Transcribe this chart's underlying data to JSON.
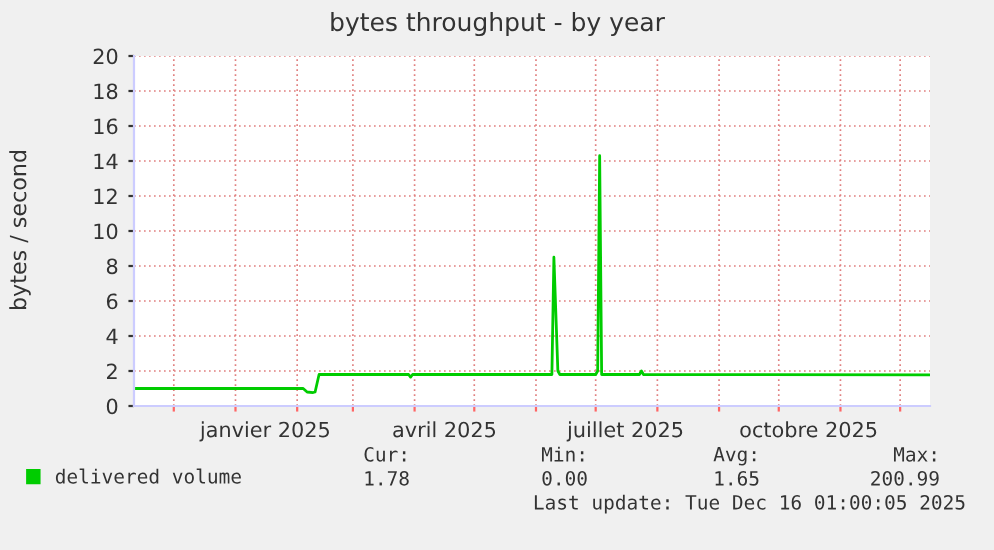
{
  "chart_data": {
    "type": "line",
    "title": "bytes throughput - by year",
    "ylabel": "bytes / second",
    "x": [
      "2024-11-11",
      "2025-02-04",
      "2025-02-06",
      "2025-02-09",
      "2025-02-10",
      "2025-02-12",
      "2025-03-29",
      "2025-03-30",
      "2025-03-31",
      "2025-06-09",
      "2025-06-10",
      "2025-06-12",
      "2025-06-13",
      "2025-07-01",
      "2025-07-02",
      "2025-07-03",
      "2025-07-04",
      "2025-07-23",
      "2025-07-24",
      "2025-07-25",
      "2025-12-16"
    ],
    "series": [
      {
        "name": "delivered volume",
        "color": "#00cc00",
        "values": [
          1.0,
          1.0,
          0.8,
          0.77,
          0.8,
          1.8,
          1.8,
          1.65,
          1.8,
          1.8,
          8.5,
          2.0,
          1.8,
          1.8,
          2.0,
          14.3,
          1.8,
          1.8,
          2.0,
          1.8,
          1.78
        ]
      }
    ],
    "xlim": [
      "2024-11-11",
      "2025-12-16"
    ],
    "xticks": [
      {
        "value": "2024-12-01",
        "label": null
      },
      {
        "value": "2025-01-01",
        "label": null
      },
      {
        "value": "2025-01-16",
        "label": "janvier 2025"
      },
      {
        "value": "2025-02-01",
        "label": null
      },
      {
        "value": "2025-03-01",
        "label": null
      },
      {
        "value": "2025-04-01",
        "label": null
      },
      {
        "value": "2025-04-16",
        "label": "avril 2025"
      },
      {
        "value": "2025-05-01",
        "label": null
      },
      {
        "value": "2025-06-01",
        "label": null
      },
      {
        "value": "2025-07-01",
        "label": null
      },
      {
        "value": "2025-07-16",
        "label": "juillet 2025"
      },
      {
        "value": "2025-08-01",
        "label": null
      },
      {
        "value": "2025-09-01",
        "label": null
      },
      {
        "value": "2025-10-01",
        "label": null
      },
      {
        "value": "2025-10-16",
        "label": "octobre 2025"
      },
      {
        "value": "2025-11-01",
        "label": null
      },
      {
        "value": "2025-12-01",
        "label": null
      }
    ],
    "ylim": [
      0,
      20
    ],
    "yticks": [
      0,
      2,
      4,
      6,
      8,
      10,
      12,
      14,
      16,
      18,
      20
    ],
    "grid": true,
    "legend": "bottom",
    "marker": "none",
    "line_style": "solid",
    "annotations": [
      "Cur:",
      "Min:",
      "Avg:",
      "Max:",
      "1.78",
      "0.00",
      "1.65",
      "200.99",
      "Last update: Tue Dec 16 01:00:05 2025"
    ]
  }
}
